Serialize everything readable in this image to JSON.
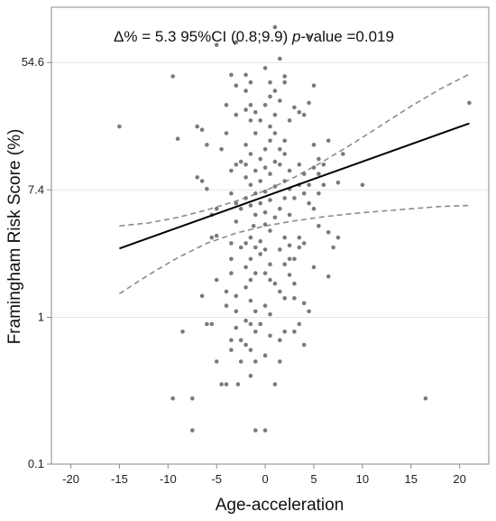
{
  "chart_data": {
    "type": "scatter",
    "title": "",
    "xlabel": "Age-acceleration",
    "ylabel": "Framingham Risk Score (%)",
    "annotation": {
      "delta": "Δ% = 5.3 95%CI (0.8;9.9) ",
      "p_label": "p",
      "p_rest": "-value =0.019"
    },
    "x_scale": "linear",
    "y_scale": "log",
    "xlim": [
      -22,
      23
    ],
    "ylim": [
      0.1,
      130
    ],
    "x_ticks": [
      -20,
      -15,
      -10,
      -5,
      0,
      5,
      10,
      15,
      20
    ],
    "y_ticks": [
      {
        "value": 0.1,
        "label": "0.1"
      },
      {
        "value": 1,
        "label": "1"
      },
      {
        "value": 7.4,
        "label": "7.4"
      },
      {
        "value": 54.6,
        "label": "54.6"
      }
    ],
    "grid": "horizontal",
    "fit_line": {
      "x": [
        -15,
        21
      ],
      "y": [
        2.95,
        21.0
      ]
    },
    "ci_upper": {
      "x": [
        -15,
        -12,
        -9,
        -6,
        -3,
        0,
        3,
        6,
        9,
        12,
        15,
        18,
        21
      ],
      "y": [
        4.2,
        4.4,
        4.8,
        5.4,
        6.2,
        7.3,
        9.0,
        11.6,
        15.3,
        20.5,
        27.5,
        36.0,
        45.5
      ]
    },
    "ci_lower": {
      "x": [
        -15,
        -12,
        -9,
        -6,
        -3,
        0,
        3,
        6,
        9,
        12,
        15,
        18,
        21
      ],
      "y": [
        1.45,
        1.95,
        2.55,
        3.2,
        3.75,
        4.2,
        4.55,
        4.85,
        5.1,
        5.3,
        5.5,
        5.7,
        5.8
      ]
    },
    "colors": {
      "points": "#7a7a7a",
      "fit": "#000000",
      "ci": "#8c8c8c",
      "grid": "#e6e6e6",
      "axis": "#8a8a8a"
    },
    "points": [
      [
        -15,
        20
      ],
      [
        -9.5,
        44
      ],
      [
        -9,
        16.5
      ],
      [
        -8.5,
        0.8
      ],
      [
        -9.5,
        0.28
      ],
      [
        -7.5,
        0.28
      ],
      [
        -7.5,
        0.17
      ],
      [
        -7,
        20
      ],
      [
        -6.5,
        19
      ],
      [
        -7,
        9
      ],
      [
        -6.5,
        8.5
      ],
      [
        -6,
        7.5
      ],
      [
        -6,
        15
      ],
      [
        -5.5,
        5
      ],
      [
        -5,
        5.5
      ],
      [
        -5,
        3.6
      ],
      [
        -5.5,
        3.5
      ],
      [
        -5,
        1.8
      ],
      [
        -6.5,
        1.4
      ],
      [
        -5.5,
        0.9
      ],
      [
        -6,
        0.9
      ],
      [
        -5,
        0.5
      ],
      [
        -4.5,
        0.35
      ],
      [
        -4,
        0.35
      ],
      [
        -5,
        72
      ],
      [
        -3,
        75
      ],
      [
        -3.5,
        45
      ],
      [
        -3,
        38
      ],
      [
        -4,
        28
      ],
      [
        -3,
        24
      ],
      [
        -4,
        18
      ],
      [
        -4.5,
        14
      ],
      [
        -3.5,
        10
      ],
      [
        -3,
        11
      ],
      [
        -2.5,
        11.5
      ],
      [
        -3.5,
        7
      ],
      [
        -3,
        6
      ],
      [
        -2.5,
        5.5
      ],
      [
        -3,
        4.5
      ],
      [
        -3.5,
        3.2
      ],
      [
        -2.5,
        3
      ],
      [
        -3.5,
        2.5
      ],
      [
        -3.5,
        2
      ],
      [
        -4,
        1.5
      ],
      [
        -3,
        1.4
      ],
      [
        -3,
        1.1
      ],
      [
        -4,
        1.2
      ],
      [
        -3,
        0.85
      ],
      [
        -3.5,
        0.7
      ],
      [
        -2.5,
        0.7
      ],
      [
        -3.5,
        0.6
      ],
      [
        -2.5,
        0.5
      ],
      [
        -2.8,
        0.35
      ],
      [
        -2,
        45
      ],
      [
        -1.5,
        40
      ],
      [
        -2,
        35
      ],
      [
        -1.5,
        28
      ],
      [
        -2,
        26
      ],
      [
        -1,
        25
      ],
      [
        -1.5,
        22
      ],
      [
        -1,
        18
      ],
      [
        -2,
        15
      ],
      [
        -1.5,
        13
      ],
      [
        -2,
        11
      ],
      [
        -1,
        10
      ],
      [
        -2,
        9
      ],
      [
        -1.5,
        8
      ],
      [
        -1,
        7
      ],
      [
        -2,
        6.5
      ],
      [
        -1.5,
        5.8
      ],
      [
        -1,
        5
      ],
      [
        -1.2,
        4.2
      ],
      [
        -1.5,
        3.5
      ],
      [
        -2,
        3.2
      ],
      [
        -1,
        3
      ],
      [
        -1.5,
        2.5
      ],
      [
        -2,
        2.2
      ],
      [
        -1,
        2
      ],
      [
        -1.5,
        1.8
      ],
      [
        -2,
        1.6
      ],
      [
        -1.5,
        1.3
      ],
      [
        -1,
        1.1
      ],
      [
        -2,
        0.95
      ],
      [
        -1.5,
        0.9
      ],
      [
        -1,
        0.8
      ],
      [
        -2,
        0.65
      ],
      [
        -1.5,
        0.6
      ],
      [
        -1,
        0.5
      ],
      [
        -1.5,
        0.4
      ],
      [
        -1,
        0.17
      ],
      [
        0,
        50
      ],
      [
        0.5,
        40
      ],
      [
        1,
        35
      ],
      [
        0.5,
        32
      ],
      [
        0,
        28
      ],
      [
        1,
        24
      ],
      [
        0.5,
        20
      ],
      [
        -0.5,
        22
      ],
      [
        1,
        18
      ],
      [
        0.5,
        16
      ],
      [
        0,
        14
      ],
      [
        -0.5,
        12
      ],
      [
        1,
        11.5
      ],
      [
        0,
        10.5
      ],
      [
        0.5,
        9.5
      ],
      [
        -0.5,
        8.5
      ],
      [
        1,
        7.8
      ],
      [
        0,
        7.2
      ],
      [
        0.5,
        6.3
      ],
      [
        -0.5,
        6
      ],
      [
        0,
        5.2
      ],
      [
        1,
        4.8
      ],
      [
        0,
        4.3
      ],
      [
        0.5,
        3.9
      ],
      [
        -0.5,
        3.3
      ],
      [
        0,
        2.9
      ],
      [
        -0.5,
        2.7
      ],
      [
        0.5,
        2.3
      ],
      [
        0,
        2
      ],
      [
        0.5,
        1.8
      ],
      [
        1,
        1.7
      ],
      [
        0,
        1.2
      ],
      [
        0.5,
        1.05
      ],
      [
        -0.5,
        0.9
      ],
      [
        0.5,
        0.75
      ],
      [
        0,
        0.55
      ],
      [
        0,
        0.17
      ],
      [
        1,
        0.35
      ],
      [
        1,
        95
      ],
      [
        1.5,
        58
      ],
      [
        2,
        44
      ],
      [
        2,
        40
      ],
      [
        1.5,
        30
      ],
      [
        2.5,
        22
      ],
      [
        2,
        16
      ],
      [
        1.5,
        14
      ],
      [
        2,
        13
      ],
      [
        1.5,
        11
      ],
      [
        2.5,
        10
      ],
      [
        2,
        8.5
      ],
      [
        2.5,
        7.5
      ],
      [
        2,
        6.5
      ],
      [
        1.5,
        5.5
      ],
      [
        2.5,
        5
      ],
      [
        2,
        3.5
      ],
      [
        2.5,
        3.1
      ],
      [
        1.5,
        2.9
      ],
      [
        2.5,
        2.5
      ],
      [
        2,
        2.3
      ],
      [
        2.5,
        1.95
      ],
      [
        1.5,
        1.5
      ],
      [
        2,
        1.35
      ],
      [
        2,
        0.8
      ],
      [
        1.5,
        0.7
      ],
      [
        1.5,
        0.5
      ],
      [
        3,
        27
      ],
      [
        3.5,
        25
      ],
      [
        4,
        24
      ],
      [
        4.5,
        29
      ],
      [
        3.5,
        11
      ],
      [
        4,
        9.5
      ],
      [
        3.5,
        8
      ],
      [
        4.5,
        8
      ],
      [
        3,
        6.5
      ],
      [
        4,
        7
      ],
      [
        4.5,
        6
      ],
      [
        3.5,
        3.5
      ],
      [
        3.5,
        3
      ],
      [
        4,
        3.2
      ],
      [
        3,
        2.5
      ],
      [
        3,
        1.7
      ],
      [
        4,
        1.25
      ],
      [
        4.5,
        1.1
      ],
      [
        3,
        1.35
      ],
      [
        3.5,
        0.9
      ],
      [
        4,
        0.65
      ],
      [
        3,
        0.8
      ],
      [
        4.5,
        82
      ],
      [
        5,
        38
      ],
      [
        5,
        15
      ],
      [
        5.5,
        12
      ],
      [
        5,
        10.5
      ],
      [
        5.5,
        9.5
      ],
      [
        6,
        11
      ],
      [
        5.5,
        7
      ],
      [
        5,
        5.5
      ],
      [
        5.5,
        4.2
      ],
      [
        6.5,
        16
      ],
      [
        6.5,
        3.8
      ],
      [
        6.5,
        1.9
      ],
      [
        7.5,
        3.5
      ],
      [
        7.5,
        8.3
      ],
      [
        6,
        8
      ],
      [
        5,
        2.2
      ],
      [
        7,
        3
      ],
      [
        8,
        13
      ],
      [
        10,
        8
      ],
      [
        16.5,
        0.28
      ],
      [
        21,
        29
      ]
    ]
  }
}
